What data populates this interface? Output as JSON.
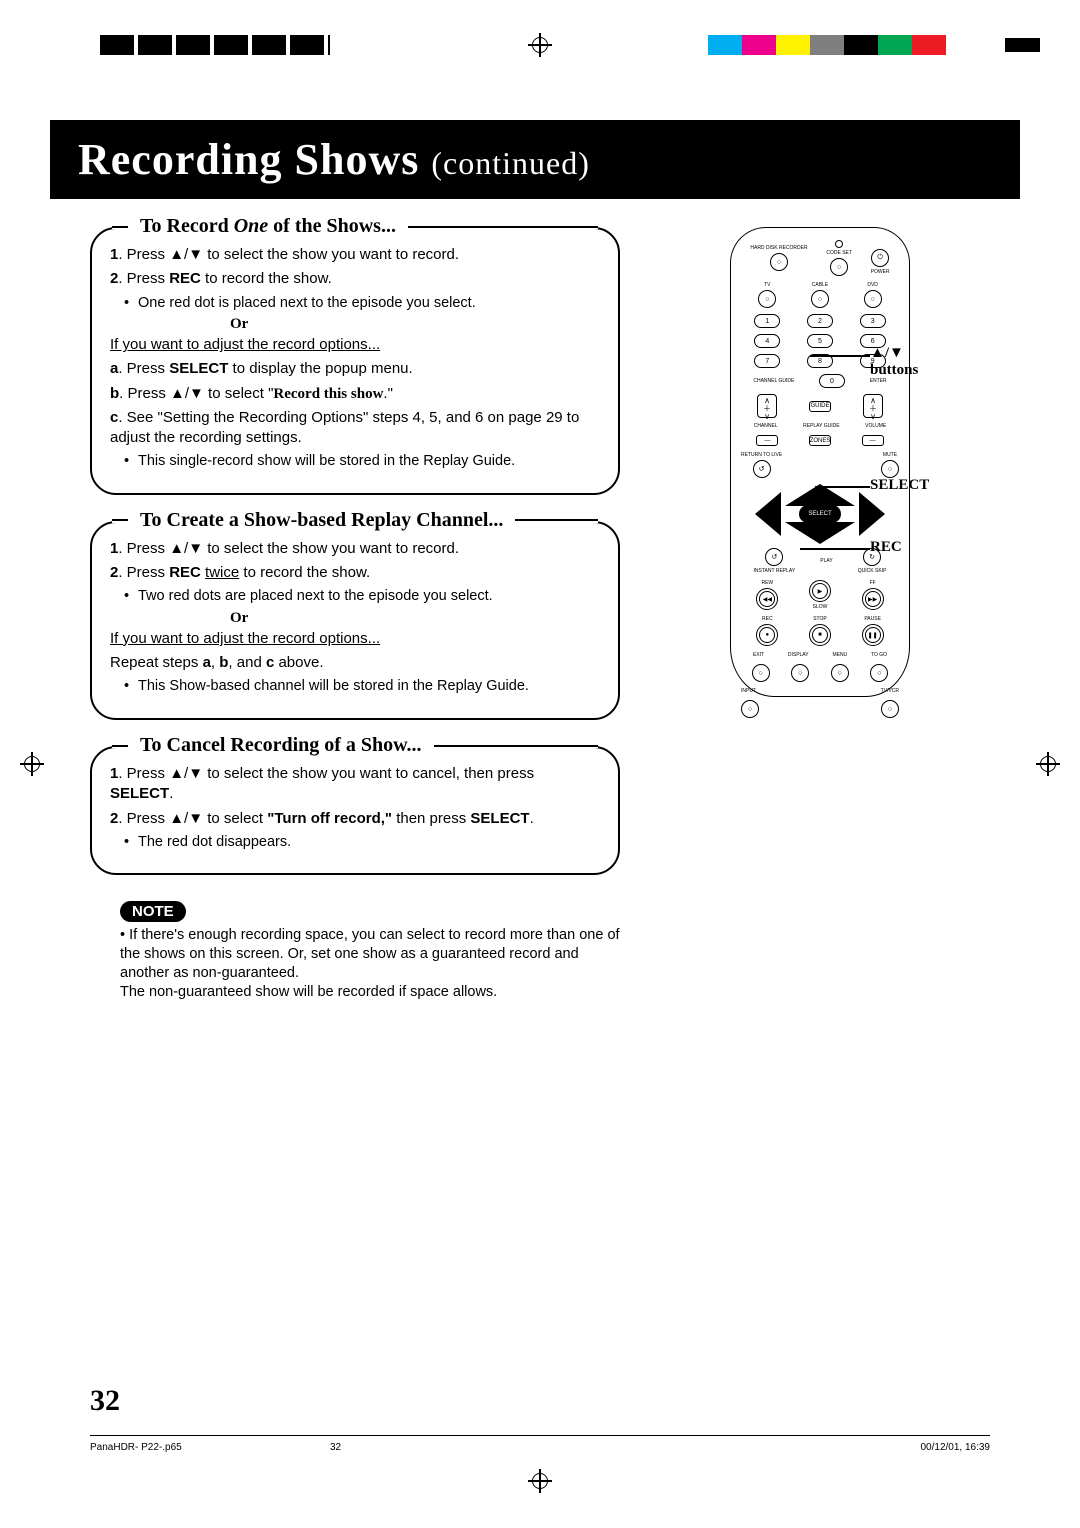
{
  "colorbar": [
    "#ffffff",
    "#ffffff",
    "#00aeef",
    "#ec008c",
    "#fff200",
    "#7f7f7f",
    "#000000",
    "#00a651",
    "#ed1c24",
    "#ffffff"
  ],
  "title": {
    "main": "Recording  Shows ",
    "sub": "(continued)"
  },
  "box1": {
    "title": "To Record <i>One</i> of the Shows...",
    "s1": "<b>1</b>. Press ▲/▼ to select the show you want to record.",
    "s2": "<b>2</b>. Press <b>REC</b> to record the show.",
    "b1": "One red dot is placed next to the episode you select.",
    "or": "Or",
    "u1": "If you want to adjust the record options...",
    "a": "<b>a</b>. Press <b>SELECT</b> to display the popup menu.",
    "b": "<b>b</b>. Press ▲/▼ to select \"<b class='serif'>Record this show</b>.\"",
    "c": "<b>c</b>. See \"Setting the Recording Options\" steps 4, 5, and 6 on page 29 to adjust the recording settings.",
    "b2": "This single-record show will be stored in the Replay Guide."
  },
  "box2": {
    "title": "To Create a Show-based Replay Channel...",
    "s1": "<b>1</b>. Press ▲/▼ to select the show you want to record.",
    "s2": "<b>2</b>. Press <b>REC</b> <u>twice</u> to record the show.",
    "b1": "Two red dots are placed next to the episode you select.",
    "or": "Or",
    "u1": "If you want to adjust the record options...",
    "r": "Repeat steps <b>a</b>, <b>b</b>, and <b>c</b> above.",
    "b2": "This Show-based channel will be stored in the Replay Guide."
  },
  "box3": {
    "title": "To Cancel Recording of a Show...",
    "s1": "<b>1</b>. Press ▲/▼ to select the show you want to cancel, then press <b>SELECT</b>.",
    "s2": "<b>2</b>. Press ▲/▼ to select <b>\"Turn off record,\"</b> then press <b>SELECT</b>.",
    "b1": "The red dot disappears."
  },
  "note": {
    "label": "NOTE",
    "text": "If there's enough recording space, you can select to record more than one of the shows on this screen. Or, set one show as a guaranteed record and another as non-guaranteed.\nThe non-guaranteed show will be recorded if space allows."
  },
  "remote_labels": {
    "buttons": "▲/▼\nbuttons",
    "select": "SELECT",
    "rec": "REC",
    "toprow": {
      "hdr": "HARD DISK\nRECORDER",
      "code": "CODE SET",
      "pwr": "POWER"
    },
    "mode": {
      "tv": "TV",
      "cable": "CABLE",
      "dvd": "DVD"
    },
    "mid": {
      "cg": "CHANNEL GUIDE",
      "ent": "ENTER"
    },
    "rockers": {
      "ch": "CHANNEL",
      "rp": "REPLAY\nGUIDE",
      "vol": "VOLUME",
      "zones": "ZONES"
    },
    "rtl": "RETURN\nTO LIVE",
    "mute": "MUTE",
    "sel": "SELECT",
    "ir": "INSTANT\nREPLAY",
    "play": "PLAY",
    "qs": "QUICK\nSKIP",
    "rew": "REW",
    "slow": "SLOW",
    "ff": "FF",
    "recb": "REC",
    "stop": "STOP",
    "pause": "PAUSE",
    "bl": {
      "exit": "EXIT",
      "disp": "DISPLAY",
      "menu": "MENU",
      "togo": "TO GO",
      "input": "INPUT",
      "tvvcr": "TV/VCR"
    }
  },
  "pagenum": "32",
  "footer": {
    "file": "PanaHDR- P22-.p65",
    "pg": "32",
    "ts": "00/12/01, 16:39"
  }
}
